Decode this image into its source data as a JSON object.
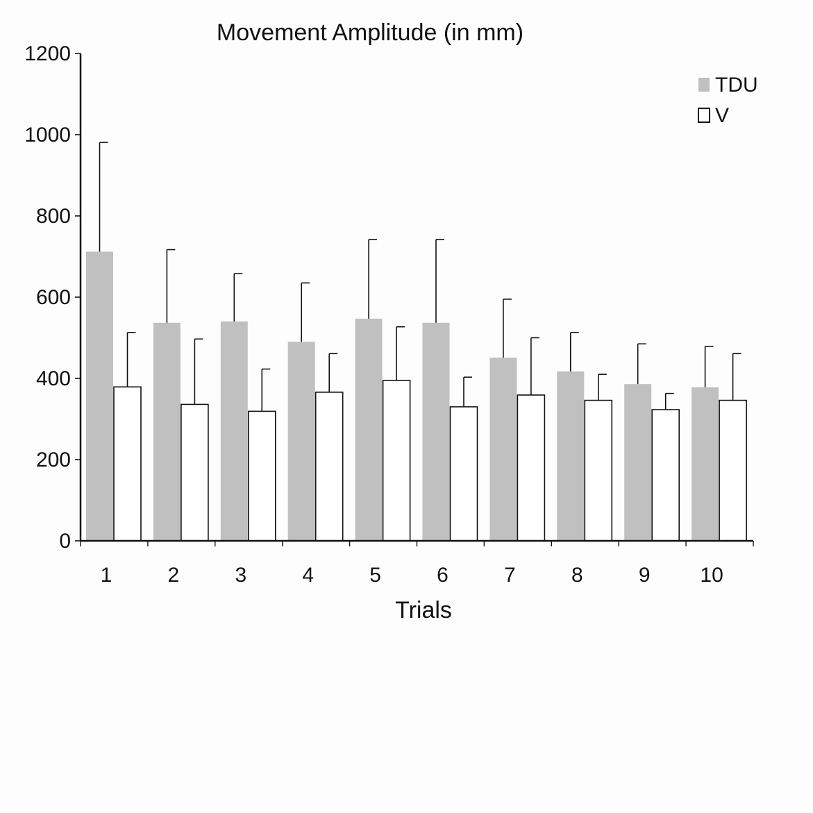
{
  "chart_data": {
    "type": "bar",
    "title": "Movement Amplitude (in mm)",
    "xlabel": "Trials",
    "ylabel": "",
    "categories": [
      "1",
      "2",
      "3",
      "4",
      "5",
      "6",
      "7",
      "8",
      "9",
      "10"
    ],
    "ylim": [
      0,
      1200
    ],
    "yticks": [
      0,
      200,
      400,
      600,
      800,
      1000,
      1200
    ],
    "legend_position": "top-right",
    "grid": false,
    "error_bars": "upper",
    "series": [
      {
        "name": "TDU",
        "color": "#c0c0c0",
        "values": [
          712,
          537,
          540,
          490,
          547,
          537,
          451,
          417,
          386,
          378
        ],
        "error_upper": [
          981,
          717,
          658,
          635,
          742,
          742,
          595,
          513,
          485,
          479
        ]
      },
      {
        "name": "V",
        "color": "#ffffff",
        "values": [
          379,
          336,
          319,
          366,
          395,
          330,
          359,
          346,
          323,
          346
        ],
        "error_upper": [
          513,
          497,
          423,
          461,
          527,
          403,
          500,
          410,
          363,
          461
        ]
      }
    ]
  }
}
